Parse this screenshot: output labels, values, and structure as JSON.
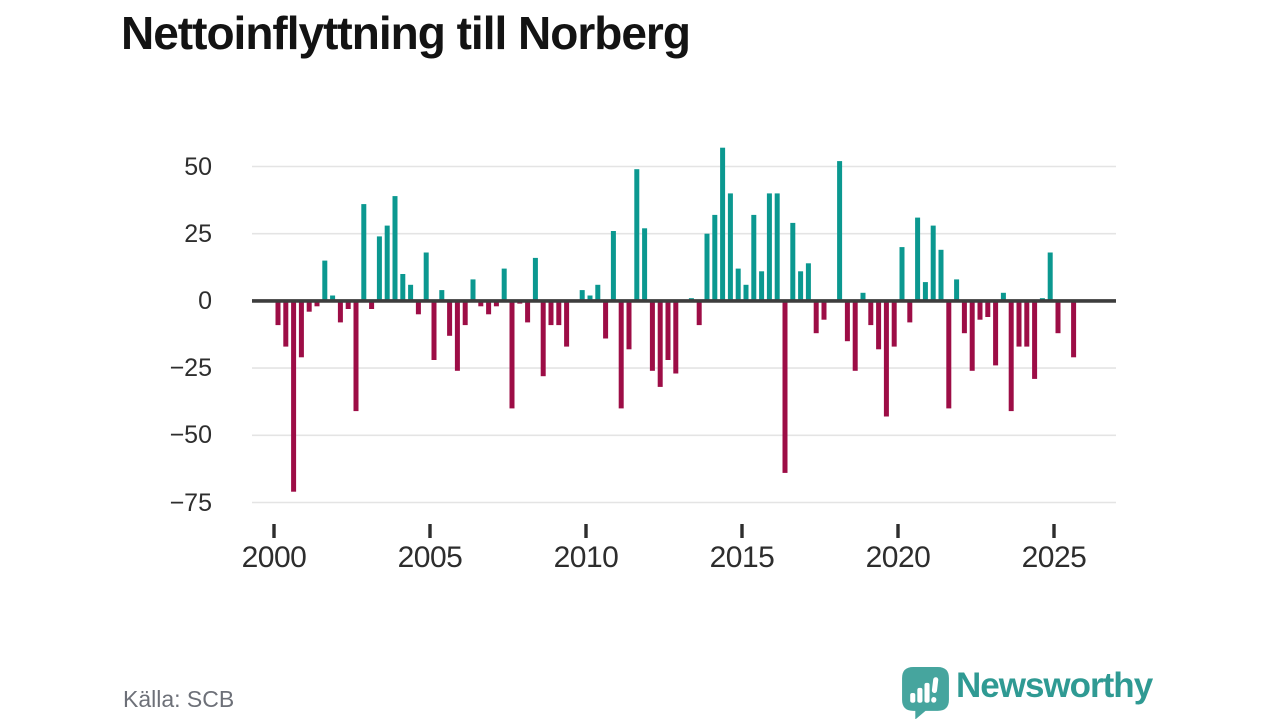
{
  "header": {
    "title": "Nettoinflyttning till Norberg"
  },
  "footer": {
    "source": "Källa: SCB",
    "brand": "Newsworthy"
  },
  "colors": {
    "positive": "#0b9890",
    "negative": "#9d0d46",
    "axis": "#3d3d3d",
    "grid": "#e4e4e4",
    "tick": "#2d2d2d",
    "axis_label": "#2e2e2e",
    "muted": "#6d7078",
    "brand": "#2f9a93",
    "logo_bubble": "#46a59e",
    "title": "#131313"
  },
  "chart_data": {
    "type": "bar",
    "title": "Nettoinflyttning till Norberg",
    "source": "Källa: SCB",
    "frequency": "quarterly",
    "x_start": "2000 Q1",
    "x_end": "2025 Q3",
    "values": [
      -9,
      -17,
      -71,
      -21,
      -4,
      -2,
      15,
      2,
      -8,
      -3,
      -41,
      36,
      -3,
      24,
      28,
      39,
      10,
      6,
      -5,
      18,
      -22,
      4,
      -13,
      -26,
      -9,
      8,
      -2,
      -5,
      -2,
      12,
      -40,
      -1,
      -8,
      16,
      -28,
      -9,
      -9,
      -17,
      0,
      4,
      2,
      6,
      -14,
      26,
      -40,
      -18,
      49,
      27,
      -26,
      -32,
      -22,
      -27,
      0,
      1,
      -9,
      25,
      32,
      57,
      40,
      12,
      6,
      32,
      11,
      40,
      40,
      -64,
      29,
      11,
      14,
      -12,
      -7,
      0,
      52,
      -15,
      -26,
      3,
      -9,
      -18,
      -43,
      -17,
      20,
      -8,
      31,
      7,
      28,
      19,
      -40,
      8,
      -12,
      -26,
      -7,
      -6,
      -24,
      3,
      -41,
      -17,
      -17,
      -29,
      1,
      18,
      -12,
      0,
      -21
    ],
    "y_ticks": [
      50,
      25,
      0,
      -25,
      -50,
      -75
    ],
    "y_tick_labels": [
      "50",
      "25",
      "0",
      "−25",
      "−50",
      "−75"
    ],
    "x_tick_labels": [
      "2000",
      "2005",
      "2010",
      "2015",
      "2020",
      "2025"
    ],
    "ylim": [
      -75,
      57
    ],
    "grid": true,
    "legend": "none"
  }
}
